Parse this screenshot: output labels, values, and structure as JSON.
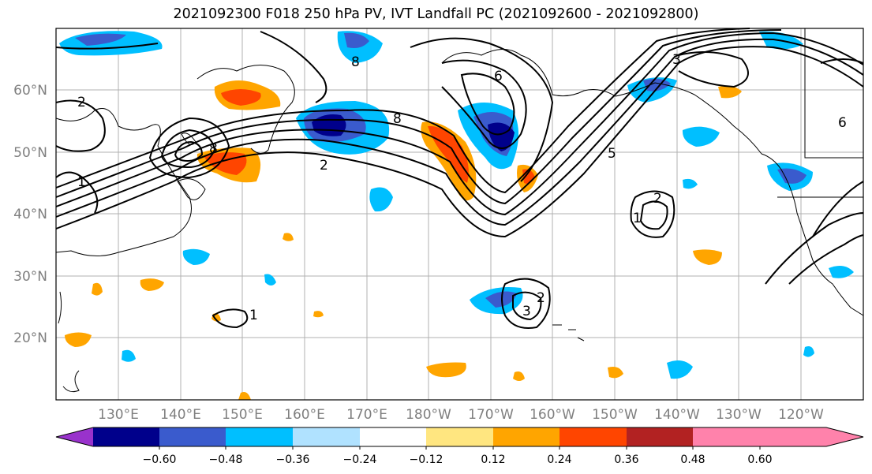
{
  "title": "2021092300 F018 250 hPa PV, IVT Landfall PC (2021092600 - 2021092800)",
  "map": {
    "lon_labels": [
      "130°E",
      "140°E",
      "150°E",
      "160°E",
      "170°E",
      "180°W",
      "170°W",
      "160°W",
      "150°W",
      "140°W",
      "130°W",
      "120°W"
    ],
    "lat_labels": [
      "60°N",
      "50°N",
      "40°N",
      "30°N",
      "20°N"
    ]
  },
  "colorbar": {
    "ticks": [
      "−0.60",
      "−0.48",
      "−0.36",
      "−0.24",
      "−0.12",
      "0.12",
      "0.24",
      "0.36",
      "0.48",
      "0.60"
    ],
    "colors": [
      "#9932cc",
      "#00008b",
      "#3a5bcd",
      "#00bfff",
      "#b0e2ff",
      "#ffffff",
      "#ffe680",
      "#ffa500",
      "#ff4500",
      "#b22222",
      "#ff82ab"
    ]
  },
  "contour_labels": [
    "2",
    "3",
    "6",
    "8",
    "5",
    "1"
  ]
}
